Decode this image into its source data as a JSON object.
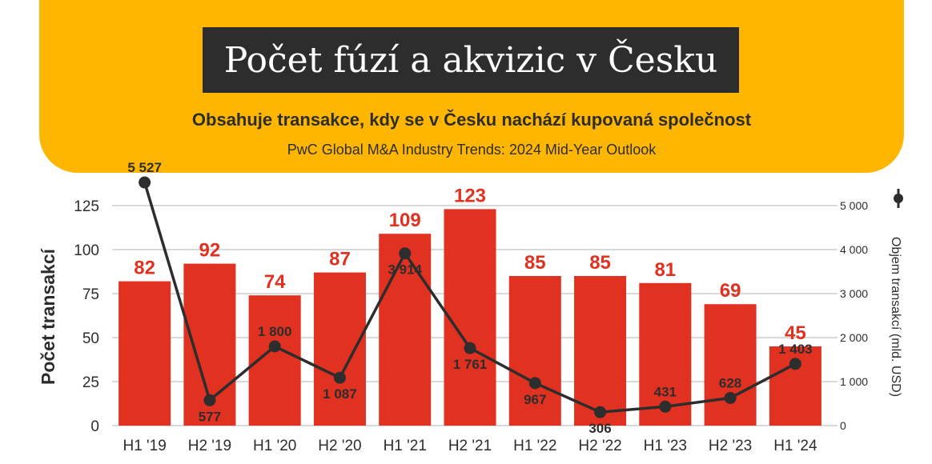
{
  "header": {
    "title": "Počet fúzí a akvizic v Česku",
    "subtitle": "Obsahuje transakce, kdy se v Česku nachází kupovaná společnost",
    "source": "PwC Global M&A Industry Trends: 2024 Mid-Year Outlook"
  },
  "colors": {
    "accent": "#ffb600",
    "bar": "#e03121",
    "line": "#2d2d2d",
    "title_bg": "#2d2d2d"
  },
  "chart_data": {
    "type": "bar",
    "categories": [
      "H1 '19",
      "H2 '19",
      "H1 '20",
      "H2 '20",
      "H1 '21",
      "H2 '21",
      "H1 '22",
      "H2 '22",
      "H1 '23",
      "H2 '23",
      "H1 '24"
    ],
    "series": [
      {
        "type": "bar",
        "axis": "left",
        "values": [
          82,
          92,
          74,
          87,
          109,
          123,
          85,
          85,
          81,
          69,
          45
        ],
        "labels": [
          "82",
          "92",
          "74",
          "87",
          "109",
          "123",
          "85",
          "85",
          "81",
          "69",
          "45"
        ]
      },
      {
        "name": "Objem transakcí",
        "type": "line",
        "axis": "right",
        "values": [
          5527,
          577,
          1800,
          1087,
          3914,
          1761,
          967,
          306,
          431,
          628,
          1403
        ],
        "labels": [
          "5 527",
          "577",
          "1 800",
          "1 087",
          "3 914",
          "1 761",
          "967",
          "306",
          "431",
          "628",
          "1 403"
        ]
      }
    ],
    "ylabel": "Počet transakcí",
    "y2label": "Objem transakcí (mld. USD)",
    "ylim": [
      0,
      125
    ],
    "yticks": [
      "0",
      "25",
      "50",
      "75",
      "100",
      "125"
    ],
    "y2lim": [
      0,
      5000
    ],
    "y2ticks": [
      "0",
      "1 000",
      "2 000",
      "3 000",
      "4 000",
      "5 000"
    ],
    "grid": true,
    "legend": "top-right"
  }
}
